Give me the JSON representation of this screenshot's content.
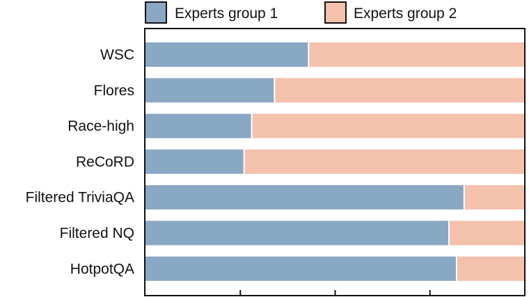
{
  "chart_data": {
    "type": "bar",
    "orientation": "horizontal",
    "stacked": true,
    "categories": [
      "WSC",
      "Flores",
      "Race-high",
      "ReCoRD",
      "Filtered TriviaQA",
      "Filtered NQ",
      "HotpotQA"
    ],
    "series": [
      {
        "name": "Experts group 1",
        "color": "#89a8c4",
        "values": [
          0.43,
          0.34,
          0.28,
          0.26,
          0.84,
          0.8,
          0.82
        ]
      },
      {
        "name": "Experts group 2",
        "color": "#f4c1ad",
        "values": [
          0.57,
          0.66,
          0.72,
          0.74,
          0.16,
          0.2,
          0.18
        ]
      }
    ],
    "xlim": [
      0,
      1
    ],
    "xticks": [
      0,
      0.25,
      0.5,
      0.75,
      1
    ],
    "title": "",
    "xlabel": "",
    "ylabel": "",
    "legend_position": "top",
    "grid": false
  }
}
